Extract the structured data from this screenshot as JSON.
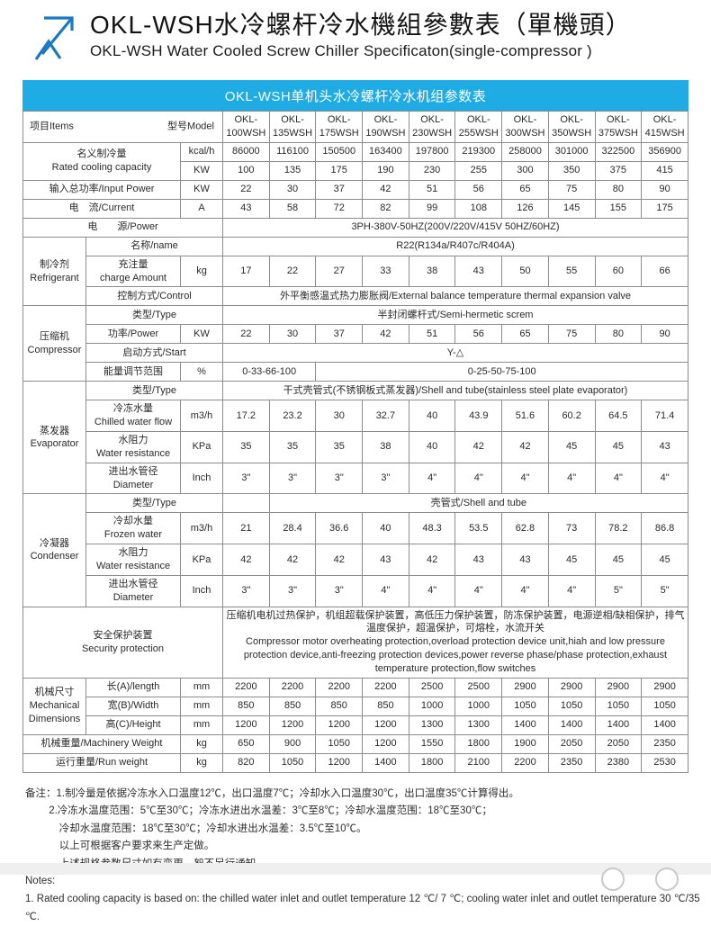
{
  "page": {
    "title_zh": "OKL-WSH水冷螺杆冷水機組參數表（單機頭）",
    "title_en": "OKL-WSH Water Cooled Screw Chiller Specificaton(single-compressor )",
    "accent_blue": "#1b79c0"
  },
  "table": {
    "band_title": "OKL-WSH单机头水冷螺杆冷水机组参数表",
    "band_color": "#1face4",
    "shade_color": "#dcdddd",
    "corner_left": "项目Items",
    "corner_right": "型号Model",
    "models": [
      "OKL-\n100WSH",
      "OKL-\n135WSH",
      "OKL-\n175WSH",
      "OKL-\n190WSH",
      "OKL-\n230WSH",
      "OKL-\n255WSH",
      "OKL-\n300WSH",
      "OKL-\n350WSH",
      "OKL-\n375WSH",
      "OKL-\n415WSH"
    ],
    "rows": [
      {
        "s": true,
        "cells": [
          {
            "k": "corner",
            "c": 3
          },
          {
            "k": "models"
          }
        ]
      },
      {
        "cells": [
          {
            "k": "label",
            "t": "名义制冷量\nRated cooling capacity",
            "c": 2,
            "r": 2
          },
          {
            "k": "unit",
            "t": "kcal/h"
          },
          {
            "k": "vals",
            "v": [
              "86000",
              "116100",
              "150500",
              "163400",
              "197800",
              "219300",
              "258000",
              "301000",
              "322500",
              "356900"
            ]
          }
        ]
      },
      {
        "cells": [
          {
            "k": "unit",
            "t": "KW"
          },
          {
            "k": "vals",
            "v": [
              "100",
              "135",
              "175",
              "190",
              "230",
              "255",
              "300",
              "350",
              "375",
              "415"
            ]
          }
        ]
      },
      {
        "s": true,
        "cells": [
          {
            "k": "label",
            "t": "输入总功率/Input Power",
            "c": 2
          },
          {
            "k": "unit",
            "t": "KW"
          },
          {
            "k": "vals",
            "v": [
              "22",
              "30",
              "37",
              "42",
              "51",
              "56",
              "65",
              "75",
              "80",
              "90"
            ]
          }
        ]
      },
      {
        "cells": [
          {
            "k": "label",
            "t": "电　流/Current",
            "c": 2
          },
          {
            "k": "unit",
            "t": "A"
          },
          {
            "k": "vals",
            "v": [
              "43",
              "58",
              "72",
              "82",
              "99",
              "108",
              "126",
              "145",
              "155",
              "175"
            ]
          }
        ]
      },
      {
        "s": true,
        "cells": [
          {
            "k": "label",
            "t": "电　　源/Power",
            "c": 3
          },
          {
            "k": "text",
            "t": "3PH-380V-50HZ(200V/220V/415V  50HZ/60HZ)",
            "c": 10
          }
        ]
      },
      {
        "cells": [
          {
            "k": "group",
            "t": "制冷剂\nRefrigerant",
            "r": 3
          },
          {
            "k": "label",
            "t": "名称/name",
            "c": 2
          },
          {
            "k": "text",
            "t": "R22(R134a/R407c/R404A)",
            "c": 10
          }
        ]
      },
      {
        "cells": [
          {
            "k": "label",
            "t": "充注量\ncharge Amount"
          },
          {
            "k": "unit",
            "t": "kg"
          },
          {
            "k": "vals",
            "v": [
              "17",
              "22",
              "27",
              "33",
              "38",
              "43",
              "50",
              "55",
              "60",
              "66"
            ]
          }
        ]
      },
      {
        "cells": [
          {
            "k": "label",
            "t": "控制方式/Control",
            "c": 2
          },
          {
            "k": "text",
            "t": "外平衡感温式热力膨胀阀/External balance temperature thermal expansion valve",
            "c": 10
          }
        ]
      },
      {
        "s": true,
        "cells": [
          {
            "k": "group",
            "t": "压缩机\nCompressor",
            "r": 4
          },
          {
            "k": "label",
            "t": "类型/Type",
            "c": 2
          },
          {
            "k": "text",
            "t": "半封闭螺杆式/Semi-hermetic screm",
            "c": 10
          }
        ]
      },
      {
        "s": true,
        "cells": [
          {
            "k": "label",
            "t": "功率/Power"
          },
          {
            "k": "unit",
            "t": "KW"
          },
          {
            "k": "vals",
            "v": [
              "22",
              "30",
              "37",
              "42",
              "51",
              "56",
              "65",
              "75",
              "80",
              "90"
            ]
          }
        ]
      },
      {
        "s": true,
        "cells": [
          {
            "k": "label",
            "t": "启动方式/Start",
            "c": 2
          },
          {
            "k": "text",
            "t": "Y-△",
            "c": 10
          }
        ]
      },
      {
        "s": true,
        "cells": [
          {
            "k": "label",
            "t": "能量调节范围"
          },
          {
            "k": "unit",
            "t": "%"
          },
          {
            "k": "text",
            "t": "0-33-66-100",
            "c": 2
          },
          {
            "k": "text",
            "t": "0-25-50-75-100",
            "c": 8
          }
        ]
      },
      {
        "cells": [
          {
            "k": "group",
            "t": "蒸发器\nEvaporator",
            "r": 4
          },
          {
            "k": "label",
            "t": "类型/Type",
            "c": 2
          },
          {
            "k": "text",
            "t": "干式壳管式(不锈钢板式蒸发器)/Shell and tube(stainless steel plate evaporator)",
            "c": 10
          }
        ]
      },
      {
        "cells": [
          {
            "k": "label",
            "t": "冷冻水量\nChilled water flow"
          },
          {
            "k": "unit",
            "t": "m3/h"
          },
          {
            "k": "vals",
            "v": [
              "17.2",
              "23.2",
              "30",
              "32.7",
              "40",
              "43.9",
              "51.6",
              "60.2",
              "64.5",
              "71.4"
            ]
          }
        ]
      },
      {
        "cells": [
          {
            "k": "label",
            "t": "水阻力\nWater resistance"
          },
          {
            "k": "unit",
            "t": "KPa"
          },
          {
            "k": "vals",
            "v": [
              "35",
              "35",
              "35",
              "38",
              "40",
              "42",
              "42",
              "45",
              "45",
              "43"
            ]
          }
        ]
      },
      {
        "cells": [
          {
            "k": "label",
            "t": "进出水管径\nDiameter"
          },
          {
            "k": "unit",
            "t": "Inch"
          },
          {
            "k": "vals",
            "v": [
              "3\"",
              "3\"",
              "3\"",
              "3\"",
              "4\"",
              "4\"",
              "4\"",
              "4\"",
              "4\"",
              "4\""
            ]
          }
        ]
      },
      {
        "s": true,
        "cells": [
          {
            "k": "group",
            "t": "冷凝器\nCondenser",
            "r": 4
          },
          {
            "k": "label",
            "t": "类型/Type",
            "c": 2
          },
          {
            "k": "val",
            "t": ""
          },
          {
            "k": "text",
            "t": "壳管式/Shell and tube",
            "c": 9
          }
        ]
      },
      {
        "s": true,
        "cells": [
          {
            "k": "label",
            "t": "冷却水量\nFrozen water"
          },
          {
            "k": "unit",
            "t": "m3/h"
          },
          {
            "k": "vals",
            "v": [
              "21",
              "28.4",
              "36.6",
              "40",
              "48.3",
              "53.5",
              "62.8",
              "73",
              "78.2",
              "86.8"
            ]
          }
        ]
      },
      {
        "s": true,
        "cells": [
          {
            "k": "label",
            "t": "水阻力\nWater resistance"
          },
          {
            "k": "unit",
            "t": "KPa"
          },
          {
            "k": "vals",
            "v": [
              "42",
              "42",
              "42",
              "43",
              "42",
              "43",
              "43",
              "45",
              "45",
              "45"
            ]
          }
        ]
      },
      {
        "s": true,
        "cells": [
          {
            "k": "label",
            "t": "进出水管径\nDiameter"
          },
          {
            "k": "unit",
            "t": "Inch"
          },
          {
            "k": "vals",
            "v": [
              "3\"",
              "3\"",
              "3\"",
              "4\"",
              "4\"",
              "4\"",
              "4\"",
              "4\"",
              "5\"",
              "5\""
            ]
          }
        ]
      },
      {
        "cells": [
          {
            "k": "label",
            "t": "安全保护装置\nSecurity protection",
            "c": 3
          },
          {
            "k": "textL",
            "t": "压缩机电机过热保护，机组超载保护装置，高低压力保护装置，防冻保护装置，电源逆相/缺相保护，排气温度保护，超温保护，可熔栓，水流开关\n  Compressor motor overheating protection,overload protection device unit,hiah and low pressure protection device,anti-freezing protection devices,power reverse phase/phase protection,exhaust temperature protection,flow switches",
            "c": 10
          }
        ]
      },
      {
        "s": true,
        "cells": [
          {
            "k": "group",
            "t": "机械尺寸\nMechanical\nDimensions",
            "r": 3
          },
          {
            "k": "label",
            "t": "长(A)/length"
          },
          {
            "k": "unit",
            "t": "mm"
          },
          {
            "k": "vals",
            "v": [
              "2200",
              "2200",
              "2200",
              "2200",
              "2500",
              "2500",
              "2900",
              "2900",
              "2900",
              "2900"
            ]
          }
        ]
      },
      {
        "s": true,
        "cells": [
          {
            "k": "label",
            "t": "宽(B)/Width"
          },
          {
            "k": "unit",
            "t": "mm"
          },
          {
            "k": "vals",
            "v": [
              "850",
              "850",
              "850",
              "850",
              "1000",
              "1000",
              "1050",
              "1050",
              "1050",
              "1050"
            ]
          }
        ]
      },
      {
        "s": true,
        "cells": [
          {
            "k": "label",
            "t": "高(C)/Height"
          },
          {
            "k": "unit",
            "t": "mm"
          },
          {
            "k": "vals",
            "v": [
              "1200",
              "1200",
              "1200",
              "1200",
              "1300",
              "1300",
              "1400",
              "1400",
              "1400",
              "1400"
            ]
          }
        ]
      },
      {
        "cells": [
          {
            "k": "label",
            "t": "机械重量/Machinery Weight",
            "c": 2
          },
          {
            "k": "unit",
            "t": "kg"
          },
          {
            "k": "vals",
            "v": [
              "650",
              "900",
              "1050",
              "1200",
              "1550",
              "1800",
              "1900",
              "2050",
              "2050",
              "2350"
            ]
          }
        ]
      },
      {
        "cells": [
          {
            "k": "label",
            "t": "运行重量/Run weight",
            "c": 2
          },
          {
            "k": "unit",
            "t": "kg"
          },
          {
            "k": "vals",
            "v": [
              "820",
              "1050",
              "1200",
              "1400",
              "1800",
              "2100",
              "2200",
              "2350",
              "2380",
              "2530"
            ]
          }
        ]
      }
    ]
  },
  "notes": {
    "zh": [
      "备注：1.制冷量是依据冷冻水入口温度12℃，出口温度7℃；冷却水入口温度30℃，出口温度35℃计算得出。",
      "　　 2.冷冻水温度范围：5℃至30℃；冷冻水进出水温差：3℃至8℃；冷却水温度范围：18℃至30℃；",
      "　　 　冷却水温度范围：18℃至30℃；冷却水进出水温差：3.5℃至10℃。",
      "　　 　以上可根据客户要求来生产定做。",
      "　　 　上述规格参数尺寸如有变更，恕不另行通知。"
    ],
    "en": [
      "Notes:",
      "1. Rated cooling capacity is based on: the chilled water inlet and outlet temperature 12 ℃/ 7 ℃; cooling water inlet and outlet temperature 30 ℃/35 ℃."
    ]
  }
}
